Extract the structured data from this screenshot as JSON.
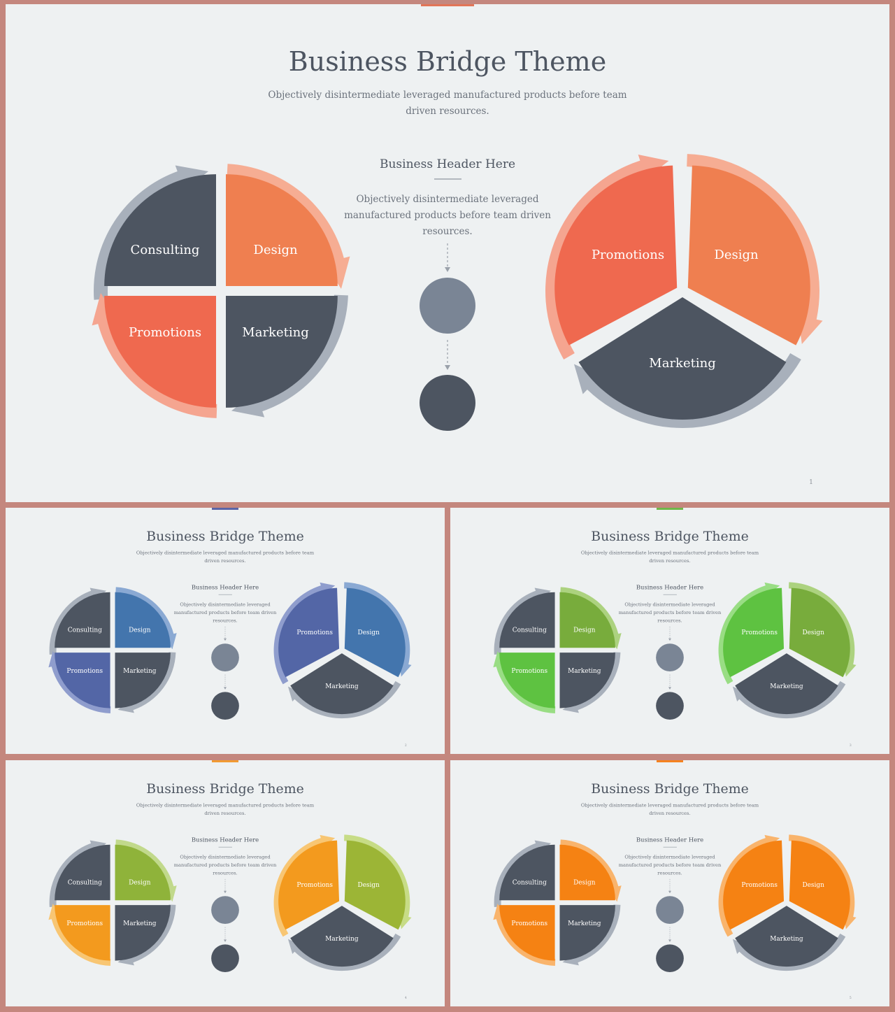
{
  "title": "Business Bridge Theme",
  "subtitle_lines": [
    "Objectively disintermediate leveraged manufactured products before team",
    "driven resources."
  ],
  "center_header": "Business Header Here",
  "center_text_lines": [
    "Objectively disintermediate leveraged",
    "manufactured products before team driven",
    "resources."
  ],
  "labels": {
    "consulting": "Consulting",
    "design": "Design",
    "promotions": "Promotions",
    "marketing": "Marketing"
  },
  "colors": {
    "background": "#eef1f2",
    "frame": "#c4877e",
    "dark": "#4d5561",
    "gray_arrow": "#a8b0bb",
    "circle_top": "#7a8595",
    "circle_bottom": "#4d5561"
  },
  "slides": [
    {
      "page_number": "1",
      "accent": "#e27557",
      "design_color": "#ef7f50",
      "design_arrow": "#f6ad93",
      "promo_color": "#ef694f",
      "promo_arrow": "#f5a590",
      "pie_promo_color": "#ef694f",
      "pie_promo_arrow": "#f5a590",
      "pie_design_color": "#ef7f50",
      "pie_design_arrow": "#f6ad93"
    },
    {
      "page_number": "2",
      "accent": "#5b65a7",
      "design_color": "#4375ad",
      "design_arrow": "#8aa9d3",
      "promo_color": "#5366a6",
      "promo_arrow": "#8f9dcd",
      "pie_promo_color": "#5366a6",
      "pie_promo_arrow": "#8f9dcd",
      "pie_design_color": "#4375ad",
      "pie_design_arrow": "#8aa9d3"
    },
    {
      "page_number": "3",
      "accent": "#6eb74a",
      "design_color": "#78ac3c",
      "design_arrow": "#acd27f",
      "promo_color": "#5ec241",
      "promo_arrow": "#99dd84",
      "pie_promo_color": "#5ec241",
      "pie_promo_arrow": "#99dd84",
      "pie_design_color": "#78ac3c",
      "pie_design_arrow": "#acd27f"
    },
    {
      "page_number": "4",
      "accent": "#f19a32",
      "design_color": "#8fb33a",
      "design_arrow": "#c1d98b",
      "promo_color": "#f39a1e",
      "promo_arrow": "#f8c673",
      "pie_promo_color": "#f39a1e",
      "pie_promo_arrow": "#f8c673",
      "pie_design_color": "#9cb536",
      "pie_design_arrow": "#c7dc86"
    },
    {
      "page_number": "5",
      "accent": "#f58220",
      "design_color": "#f58213",
      "design_arrow": "#f9b46c",
      "promo_color": "#f58213",
      "promo_arrow": "#f9b46c",
      "pie_promo_color": "#f58213",
      "pie_promo_arrow": "#f9b46c",
      "pie_design_color": "#f58213",
      "pie_design_arrow": "#f9b46c"
    }
  ]
}
